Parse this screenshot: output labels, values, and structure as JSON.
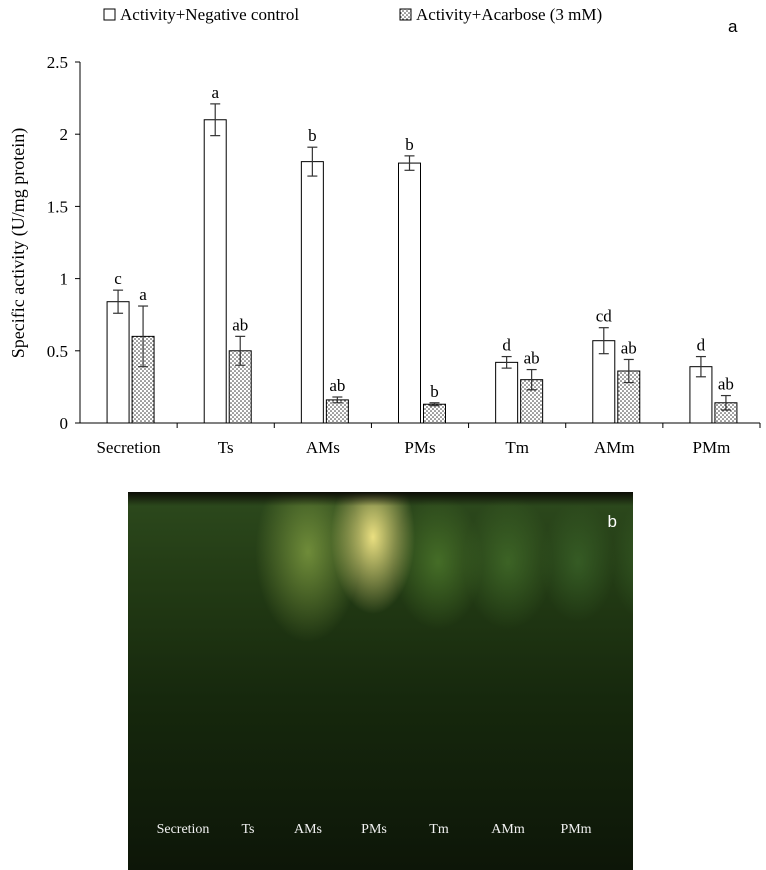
{
  "panel_a_label": "a",
  "panel_b_label": "b",
  "chart_data": {
    "type": "bar",
    "title": "",
    "xlabel": "",
    "ylabel": "Specific activity (U/mg protein)",
    "ylim": [
      0,
      2.5
    ],
    "yticks": [
      "0",
      "0.5",
      "1",
      "1.5",
      "2",
      "2.5"
    ],
    "categories": [
      "Secretion",
      "Ts",
      "AMs",
      "PMs",
      "Tm",
      "AMm",
      "PMm"
    ],
    "legend_position": "top",
    "series": [
      {
        "name": "Activity+Negative control",
        "fill": "white",
        "values": [
          0.84,
          2.1,
          1.81,
          1.8,
          0.42,
          0.57,
          0.39
        ],
        "errors": [
          0.08,
          0.11,
          0.1,
          0.05,
          0.04,
          0.09,
          0.07
        ],
        "labels": [
          "c",
          "a",
          "b",
          "b",
          "d",
          "cd",
          "d"
        ]
      },
      {
        "name": "Activity+Acarbose (3 mM)",
        "fill": "dotted",
        "values": [
          0.6,
          0.5,
          0.16,
          0.13,
          0.3,
          0.36,
          0.14
        ],
        "errors": [
          0.21,
          0.1,
          0.02,
          0.01,
          0.07,
          0.08,
          0.05
        ],
        "labels": [
          "a",
          "ab",
          "ab",
          "b",
          "ab",
          "ab",
          "ab"
        ]
      }
    ]
  },
  "gel": {
    "lanes": [
      "Secretion",
      "Ts",
      "AMs",
      "PMs",
      "Tm",
      "AMm",
      "PMm"
    ]
  }
}
